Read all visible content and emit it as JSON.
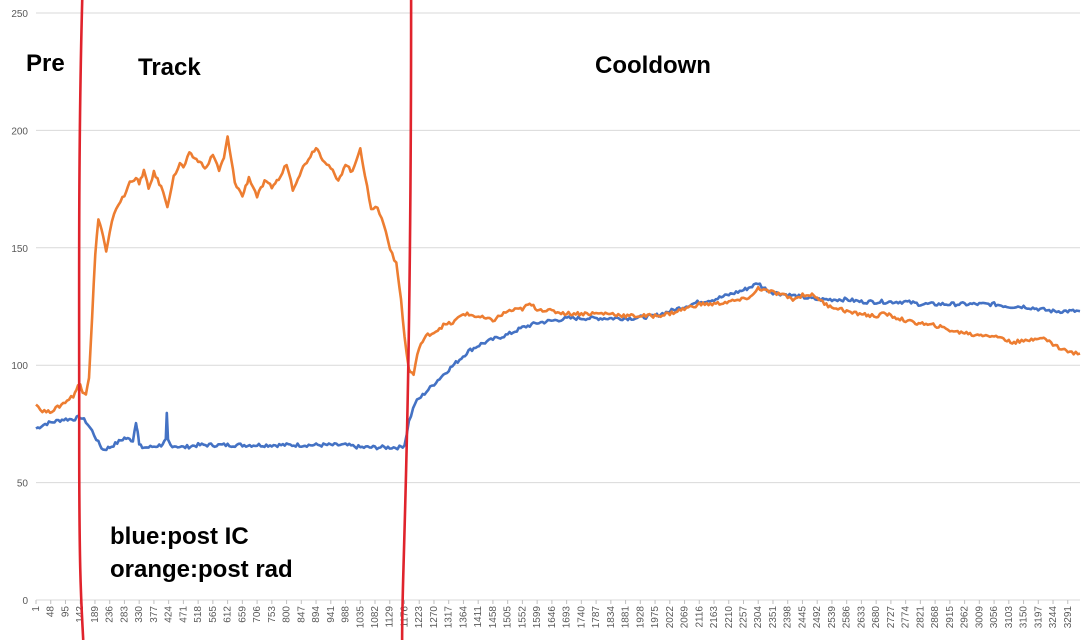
{
  "chart_data": {
    "type": "line",
    "title": "",
    "xlabel": "",
    "ylabel": "",
    "ylim": [
      0,
      250
    ],
    "xlim": [
      1,
      3330
    ],
    "yticks": [
      0,
      50,
      100,
      150,
      200,
      250
    ],
    "xticks": [
      1,
      48,
      95,
      142,
      189,
      236,
      283,
      330,
      377,
      424,
      471,
      518,
      565,
      612,
      659,
      706,
      753,
      800,
      847,
      894,
      941,
      988,
      1035,
      1082,
      1129,
      1176,
      1223,
      1270,
      1317,
      1364,
      1411,
      1458,
      1505,
      1552,
      1599,
      1646,
      1693,
      1740,
      1787,
      1834,
      1881,
      1928,
      1975,
      2022,
      2069,
      2116,
      2163,
      2210,
      2257,
      2304,
      2351,
      2398,
      2445,
      2492,
      2539,
      2586,
      2633,
      2680,
      2727,
      2774,
      2821,
      2868,
      2915,
      2962,
      3009,
      3056,
      3103,
      3150,
      3197,
      3244,
      3291
    ],
    "grid": true,
    "legend": "none",
    "series": [
      {
        "name": "",
        "color": "#4472C4",
        "x": [
          1,
          30,
          60,
          90,
          120,
          142,
          160,
          180,
          200,
          215,
          236,
          260,
          283,
          310,
          320,
          325,
          330,
          340,
          360,
          400,
          415,
          418,
          422,
          430,
          471,
          518,
          565,
          612,
          659,
          706,
          753,
          800,
          847,
          894,
          941,
          988,
          1035,
          1082,
          1129,
          1160,
          1176,
          1190,
          1210,
          1240,
          1270,
          1300,
          1340,
          1380,
          1420,
          1458,
          1505,
          1552,
          1599,
          1650,
          1700,
          1760,
          1830,
          1900,
          1975,
          2022,
          2069,
          2116,
          2163,
          2210,
          2257,
          2290,
          2304,
          2320,
          2351,
          2398,
          2445,
          2492,
          2539,
          2586,
          2633,
          2680,
          2727,
          2774,
          2821,
          2868,
          2915,
          2962,
          3009,
          3056,
          3103,
          3150,
          3197,
          3244,
          3291,
          3330
        ],
        "y": [
          73,
          75,
          76,
          77,
          77,
          78,
          76,
          72,
          67,
          64,
          65,
          67,
          69,
          68,
          76,
          72,
          66,
          65,
          65,
          66,
          68,
          79,
          68,
          66,
          65,
          66,
          66,
          66,
          66,
          66,
          66,
          66,
          66,
          66,
          66,
          66,
          65,
          65,
          65,
          65,
          66,
          76,
          84,
          88,
          92,
          96,
          101,
          106,
          109,
          111,
          113,
          116,
          118,
          119,
          120,
          120,
          120,
          120,
          121,
          123,
          125,
          127,
          128,
          130,
          132,
          134,
          135,
          133,
          131,
          130,
          129,
          128,
          128,
          128,
          127,
          127,
          127,
          127,
          126,
          126,
          126,
          126,
          126,
          126,
          125,
          125,
          124,
          123,
          123,
          123
        ]
      },
      {
        "name": "",
        "color": "#ED7D31",
        "x": [
          1,
          15,
          40,
          70,
          100,
          120,
          135,
          142,
          150,
          160,
          170,
          180,
          190,
          200,
          210,
          225,
          236,
          250,
          270,
          283,
          300,
          320,
          330,
          345,
          360,
          377,
          400,
          420,
          440,
          460,
          471,
          490,
          518,
          545,
          565,
          585,
          600,
          612,
          635,
          659,
          680,
          706,
          730,
          753,
          780,
          800,
          820,
          847,
          870,
          894,
          915,
          941,
          965,
          988,
          1010,
          1035,
          1050,
          1070,
          1090,
          1110,
          1130,
          1150,
          1165,
          1176,
          1190,
          1205,
          1223,
          1250,
          1270,
          1300,
          1330,
          1364,
          1400,
          1430,
          1458,
          1480,
          1505,
          1552,
          1575,
          1599,
          1646,
          1693,
          1740,
          1787,
          1834,
          1881,
          1928,
          1975,
          2022,
          2069,
          2116,
          2163,
          2210,
          2257,
          2290,
          2304,
          2320,
          2351,
          2380,
          2398,
          2420,
          2445,
          2470,
          2492,
          2515,
          2539,
          2565,
          2586,
          2610,
          2633,
          2660,
          2680,
          2710,
          2727,
          2750,
          2774,
          2800,
          2821,
          2845,
          2868,
          2890,
          2915,
          2940,
          2962,
          2985,
          3009,
          3030,
          3056,
          3080,
          3103,
          3125,
          3150,
          3175,
          3197,
          3220,
          3244,
          3270,
          3291,
          3310,
          3330
        ],
        "y": [
          84,
          81,
          80,
          82,
          85,
          87,
          91,
          92,
          89,
          88,
          95,
          120,
          148,
          162,
          158,
          148,
          156,
          165,
          170,
          172,
          178,
          180,
          177,
          183,
          175,
          182,
          176,
          168,
          180,
          186,
          184,
          190,
          187,
          184,
          190,
          183,
          188,
          197,
          178,
          172,
          180,
          172,
          178,
          176,
          180,
          186,
          175,
          183,
          188,
          193,
          188,
          184,
          178,
          186,
          182,
          193,
          180,
          167,
          167,
          160,
          150,
          143,
          128,
          112,
          98,
          96,
          108,
          113,
          114,
          117,
          118,
          122,
          121,
          120,
          119,
          121,
          123,
          124,
          126,
          124,
          123,
          122,
          122,
          122,
          122,
          121,
          121,
          121,
          122,
          124,
          126,
          126,
          127,
          128,
          130,
          133,
          132,
          131,
          130,
          129,
          128,
          130,
          130,
          129,
          126,
          125,
          124,
          123,
          122,
          122,
          121,
          121,
          122,
          121,
          120,
          119,
          118,
          118,
          117,
          117,
          116,
          115,
          114,
          114,
          113,
          113,
          113,
          112,
          112,
          110,
          110,
          110,
          111,
          112,
          111,
          109,
          107,
          106,
          105,
          105
        ]
      }
    ],
    "annotations": {
      "pre": "Pre",
      "track": "Track",
      "cooldown": "Cooldown",
      "legend_line1": "blue:post IC",
      "legend_line2": "orange:post rad"
    },
    "phase_boundaries_x": [
      142,
      1178
    ],
    "phase_boundary_color": "#E0232C"
  }
}
